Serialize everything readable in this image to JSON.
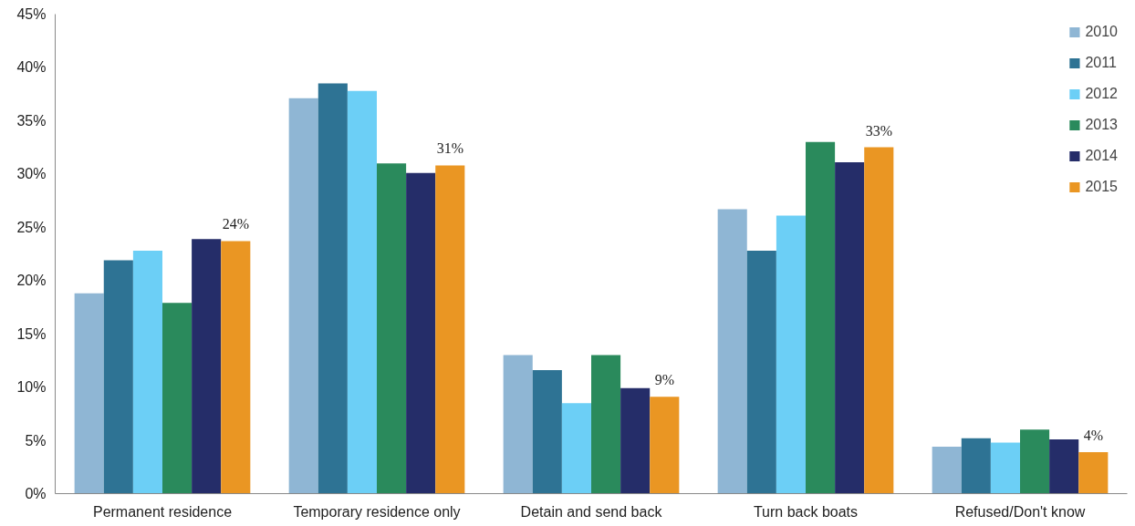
{
  "chart_data": {
    "type": "bar",
    "categories": [
      "Permanent residence",
      "Temporary residence only",
      "Detain and send back",
      "Turn back boats",
      "Refused/Don't know"
    ],
    "series": [
      {
        "name": "2010",
        "color": "#8fb6d4",
        "values": [
          18.8,
          37.1,
          13.0,
          26.7,
          4.4
        ]
      },
      {
        "name": "2011",
        "color": "#2e7394",
        "values": [
          21.9,
          38.5,
          11.6,
          22.8,
          5.2
        ]
      },
      {
        "name": "2012",
        "color": "#6ccff6",
        "values": [
          22.8,
          37.8,
          8.5,
          26.1,
          4.8
        ]
      },
      {
        "name": "2013",
        "color": "#2a8a5c",
        "values": [
          17.9,
          31.0,
          13.0,
          33.0,
          6.0
        ]
      },
      {
        "name": "2014",
        "color": "#252d69",
        "values": [
          23.9,
          30.1,
          9.9,
          31.1,
          5.1
        ]
      },
      {
        "name": "2015",
        "color": "#ea9623",
        "values": [
          23.7,
          30.8,
          9.1,
          32.5,
          3.9
        ],
        "value_labels": [
          "24%",
          "31%",
          "9%",
          "33%",
          "4%"
        ]
      }
    ],
    "ylim": [
      0,
      45
    ],
    "yticks": [
      {
        "value": 0,
        "label": "0%"
      },
      {
        "value": 5,
        "label": "5%"
      },
      {
        "value": 10,
        "label": "10%"
      },
      {
        "value": 15,
        "label": "15%"
      },
      {
        "value": 20,
        "label": "20%"
      },
      {
        "value": 25,
        "label": "25%"
      },
      {
        "value": 30,
        "label": "30%"
      },
      {
        "value": 35,
        "label": "35%"
      },
      {
        "value": 40,
        "label": "40%"
      },
      {
        "value": 45,
        "label": "45%"
      }
    ],
    "grid": false,
    "legend": "top right"
  }
}
